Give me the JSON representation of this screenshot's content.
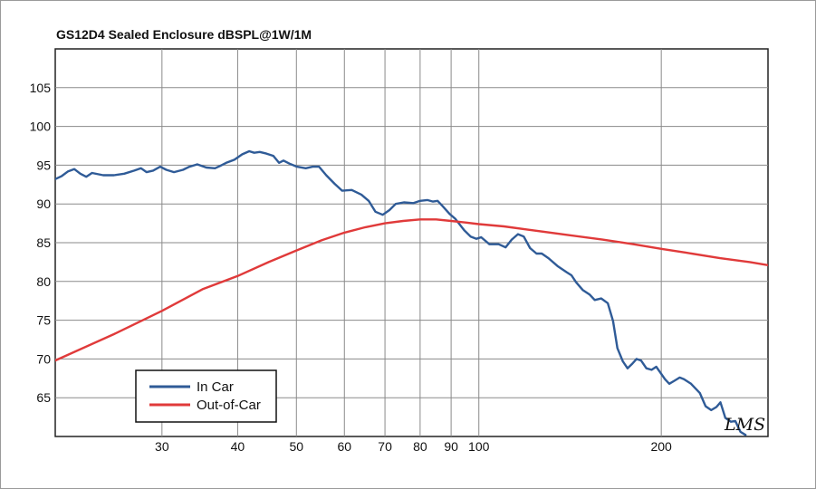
{
  "chart_data": {
    "type": "line",
    "title": "GS12D4 Sealed Enclosure dBSPL@1W/1M",
    "xlabel": "",
    "ylabel": "",
    "x_scale": "log",
    "xlim": [
      20,
      300
    ],
    "ylim": [
      60,
      110
    ],
    "grid": true,
    "legend_position": "bottom-left",
    "x_ticks": [
      30,
      40,
      50,
      60,
      70,
      80,
      90,
      100,
      200
    ],
    "x_tick_labels": [
      "30",
      "40",
      "50",
      "60",
      "70",
      "80",
      "90",
      "100",
      "200"
    ],
    "y_ticks": [
      65,
      70,
      75,
      80,
      85,
      90,
      95,
      100,
      105
    ],
    "y_tick_labels": [
      "65",
      "70",
      "75",
      "80",
      "85",
      "90",
      "95",
      "100",
      "105"
    ],
    "watermark": "LMS",
    "series": [
      {
        "name": "In Car",
        "color": "#2f5b97",
        "points": [
          [
            20,
            93.2
          ],
          [
            20.5,
            93.6
          ],
          [
            21,
            94.2
          ],
          [
            21.5,
            94.5
          ],
          [
            22,
            93.9
          ],
          [
            22.5,
            93.5
          ],
          [
            23,
            94.0
          ],
          [
            24,
            93.7
          ],
          [
            25,
            93.7
          ],
          [
            26,
            93.9
          ],
          [
            27,
            94.3
          ],
          [
            27.7,
            94.6
          ],
          [
            28.3,
            94.1
          ],
          [
            29,
            94.3
          ],
          [
            29.8,
            94.8
          ],
          [
            30.5,
            94.4
          ],
          [
            31.4,
            94.1
          ],
          [
            32.5,
            94.4
          ],
          [
            33.3,
            94.8
          ],
          [
            34.3,
            95.1
          ],
          [
            35.5,
            94.7
          ],
          [
            36.7,
            94.6
          ],
          [
            37.4,
            94.9
          ],
          [
            38.3,
            95.3
          ],
          [
            39.5,
            95.7
          ],
          [
            40.7,
            96.4
          ],
          [
            41.8,
            96.8
          ],
          [
            42.6,
            96.6
          ],
          [
            43.5,
            96.7
          ],
          [
            44.6,
            96.5
          ],
          [
            45.8,
            96.2
          ],
          [
            46.8,
            95.3
          ],
          [
            47.6,
            95.6
          ],
          [
            48.7,
            95.2
          ],
          [
            50.1,
            94.8
          ],
          [
            51.8,
            94.6
          ],
          [
            53.2,
            94.8
          ],
          [
            54.5,
            94.8
          ],
          [
            56.0,
            93.7
          ],
          [
            57.8,
            92.6
          ],
          [
            59.5,
            91.7
          ],
          [
            61.7,
            91.8
          ],
          [
            64.0,
            91.2
          ],
          [
            65.8,
            90.4
          ],
          [
            67.5,
            89.0
          ],
          [
            69.4,
            88.6
          ],
          [
            71.2,
            89.2
          ],
          [
            72.9,
            90.0
          ],
          [
            75.2,
            90.2
          ],
          [
            78.0,
            90.1
          ],
          [
            80.0,
            90.4
          ],
          [
            82.2,
            90.5
          ],
          [
            84.0,
            90.3
          ],
          [
            85.5,
            90.4
          ],
          [
            87.2,
            89.7
          ],
          [
            89.5,
            88.7
          ],
          [
            91.4,
            88.1
          ],
          [
            94.6,
            86.6
          ],
          [
            96.9,
            85.8
          ],
          [
            99.1,
            85.5
          ],
          [
            100.9,
            85.7
          ],
          [
            104.1,
            84.8
          ],
          [
            107.8,
            84.8
          ],
          [
            110.7,
            84.4
          ],
          [
            113.3,
            85.4
          ],
          [
            116.0,
            86.1
          ],
          [
            118.6,
            85.8
          ],
          [
            121.5,
            84.3
          ],
          [
            124.5,
            83.6
          ],
          [
            127.0,
            83.6
          ],
          [
            130.3,
            83.0
          ],
          [
            134.8,
            82.0
          ],
          [
            139.5,
            81.2
          ],
          [
            142.2,
            80.8
          ],
          [
            144.7,
            79.9
          ],
          [
            148.4,
            78.9
          ],
          [
            152.4,
            78.3
          ],
          [
            155.3,
            77.6
          ],
          [
            159.2,
            77.8
          ],
          [
            163.2,
            77.2
          ],
          [
            166.5,
            74.9
          ],
          [
            169.3,
            71.4
          ],
          [
            172.8,
            69.7
          ],
          [
            175.9,
            68.8
          ],
          [
            179.2,
            69.4
          ],
          [
            182.0,
            70.0
          ],
          [
            185.2,
            69.8
          ],
          [
            189.0,
            68.8
          ],
          [
            192.8,
            68.6
          ],
          [
            196.2,
            69.0
          ],
          [
            199.5,
            68.2
          ],
          [
            202.8,
            67.4
          ],
          [
            206.2,
            66.8
          ],
          [
            210.3,
            67.2
          ],
          [
            214.5,
            67.6
          ],
          [
            218.0,
            67.4
          ],
          [
            223.9,
            66.8
          ],
          [
            231.6,
            65.6
          ],
          [
            236.7,
            63.9
          ],
          [
            241.8,
            63.4
          ],
          [
            246.6,
            63.8
          ],
          [
            250.4,
            64.4
          ],
          [
            255.1,
            62.4
          ],
          [
            260.6,
            61.9
          ],
          [
            265.0,
            62.0
          ],
          [
            270.2,
            60.6
          ],
          [
            275.5,
            60.2
          ]
        ]
      },
      {
        "name": "Out-of-Car",
        "color": "#e03a3a",
        "points": [
          [
            20,
            69.8
          ],
          [
            25,
            73.2
          ],
          [
            30,
            76.2
          ],
          [
            35,
            79.0
          ],
          [
            40,
            80.7
          ],
          [
            45,
            82.5
          ],
          [
            50,
            84.0
          ],
          [
            55,
            85.3
          ],
          [
            60,
            86.3
          ],
          [
            65,
            87.0
          ],
          [
            70,
            87.5
          ],
          [
            75,
            87.8
          ],
          [
            80,
            88.0
          ],
          [
            85,
            88.0
          ],
          [
            90,
            87.8
          ],
          [
            95,
            87.6
          ],
          [
            100,
            87.4
          ],
          [
            110,
            87.1
          ],
          [
            120,
            86.7
          ],
          [
            140,
            86.0
          ],
          [
            160,
            85.4
          ],
          [
            180,
            84.8
          ],
          [
            200,
            84.2
          ],
          [
            220,
            83.7
          ],
          [
            250,
            83.0
          ],
          [
            280,
            82.5
          ],
          [
            300,
            82.1
          ]
        ]
      }
    ]
  }
}
